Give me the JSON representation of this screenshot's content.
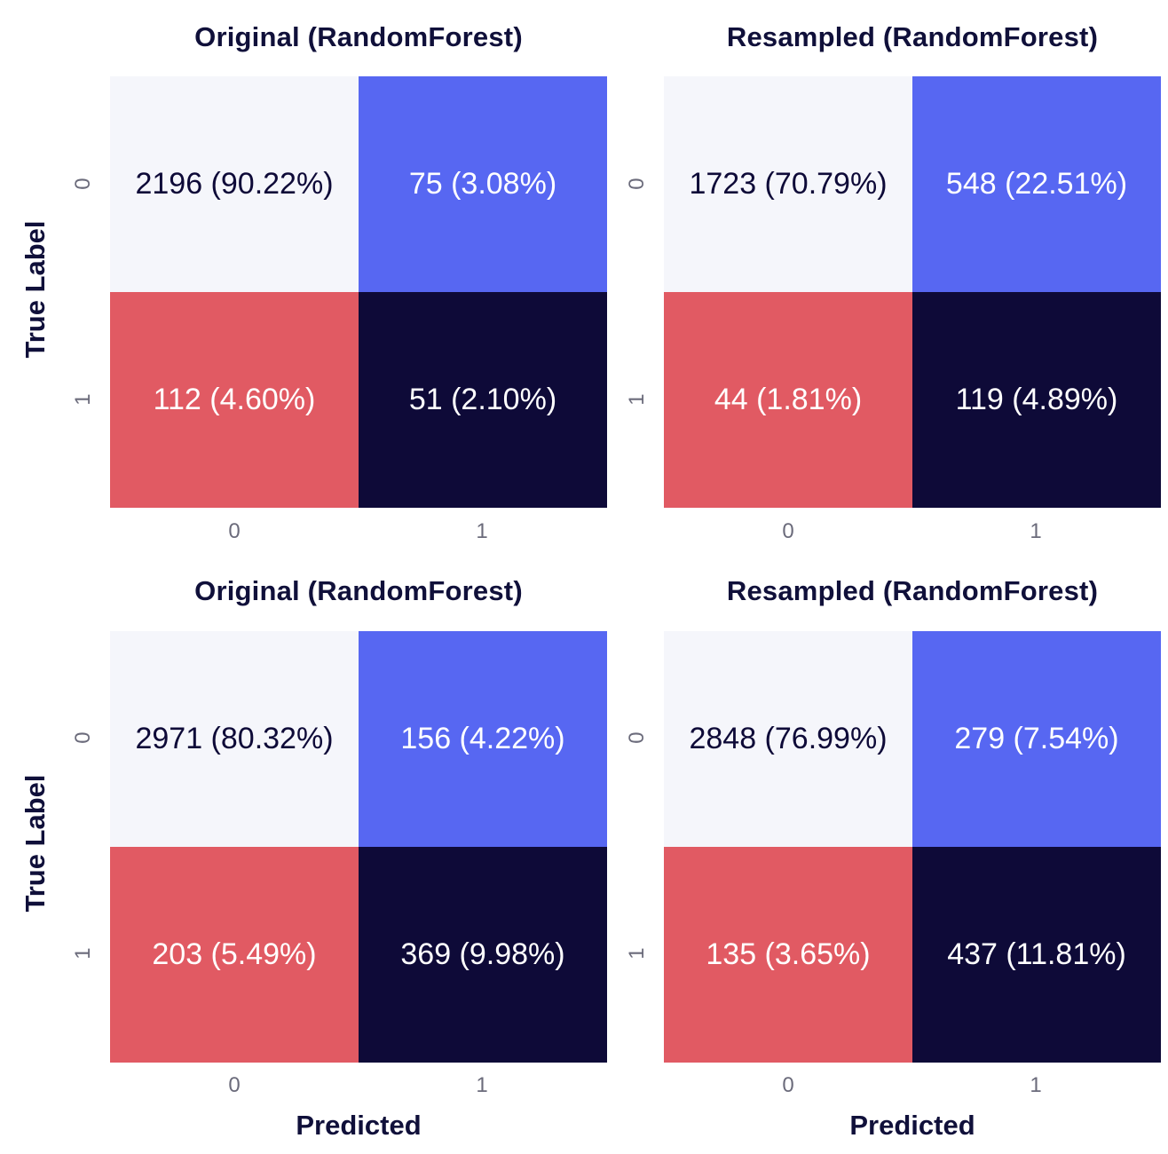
{
  "colors": {
    "tn": "#f5f6fb",
    "fp": "#5767f2",
    "fn": "#e15a63",
    "tp": "#0e0a38",
    "dark_text": "#0e0a38",
    "light_text": "#ffffff"
  },
  "chart_data": [
    {
      "type": "heatmap",
      "title": "Original (RandomForest)",
      "xlabel": "",
      "ylabel": "True Label",
      "x_ticks": [
        "0",
        "1"
      ],
      "y_ticks": [
        "0",
        "1"
      ],
      "values": [
        [
          2196,
          75
        ],
        [
          112,
          51
        ]
      ],
      "labels": [
        [
          "2196 (90.22%)",
          "75 (3.08%)"
        ],
        [
          "112 (4.60%)",
          "51 (2.10%)"
        ]
      ]
    },
    {
      "type": "heatmap",
      "title": "Resampled (RandomForest)",
      "xlabel": "",
      "ylabel": "",
      "x_ticks": [
        "0",
        "1"
      ],
      "y_ticks": [
        "0",
        "1"
      ],
      "values": [
        [
          1723,
          548
        ],
        [
          44,
          119
        ]
      ],
      "labels": [
        [
          "1723 (70.79%)",
          "548 (22.51%)"
        ],
        [
          "44 (1.81%)",
          "119 (4.89%)"
        ]
      ]
    },
    {
      "type": "heatmap",
      "title": "Original (RandomForest)",
      "xlabel": "Predicted",
      "ylabel": "True Label",
      "x_ticks": [
        "0",
        "1"
      ],
      "y_ticks": [
        "0",
        "1"
      ],
      "values": [
        [
          2971,
          156
        ],
        [
          203,
          369
        ]
      ],
      "labels": [
        [
          "2971 (80.32%)",
          "156 (4.22%)"
        ],
        [
          "203 (5.49%)",
          "369 (9.98%)"
        ]
      ]
    },
    {
      "type": "heatmap",
      "title": "Resampled (RandomForest)",
      "xlabel": "Predicted",
      "ylabel": "",
      "x_ticks": [
        "0",
        "1"
      ],
      "y_ticks": [
        "0",
        "1"
      ],
      "values": [
        [
          2848,
          279
        ],
        [
          135,
          437
        ]
      ],
      "labels": [
        [
          "2848 (76.99%)",
          "279 (7.54%)"
        ],
        [
          "135 (3.65%)",
          "437 (11.81%)"
        ]
      ]
    }
  ]
}
